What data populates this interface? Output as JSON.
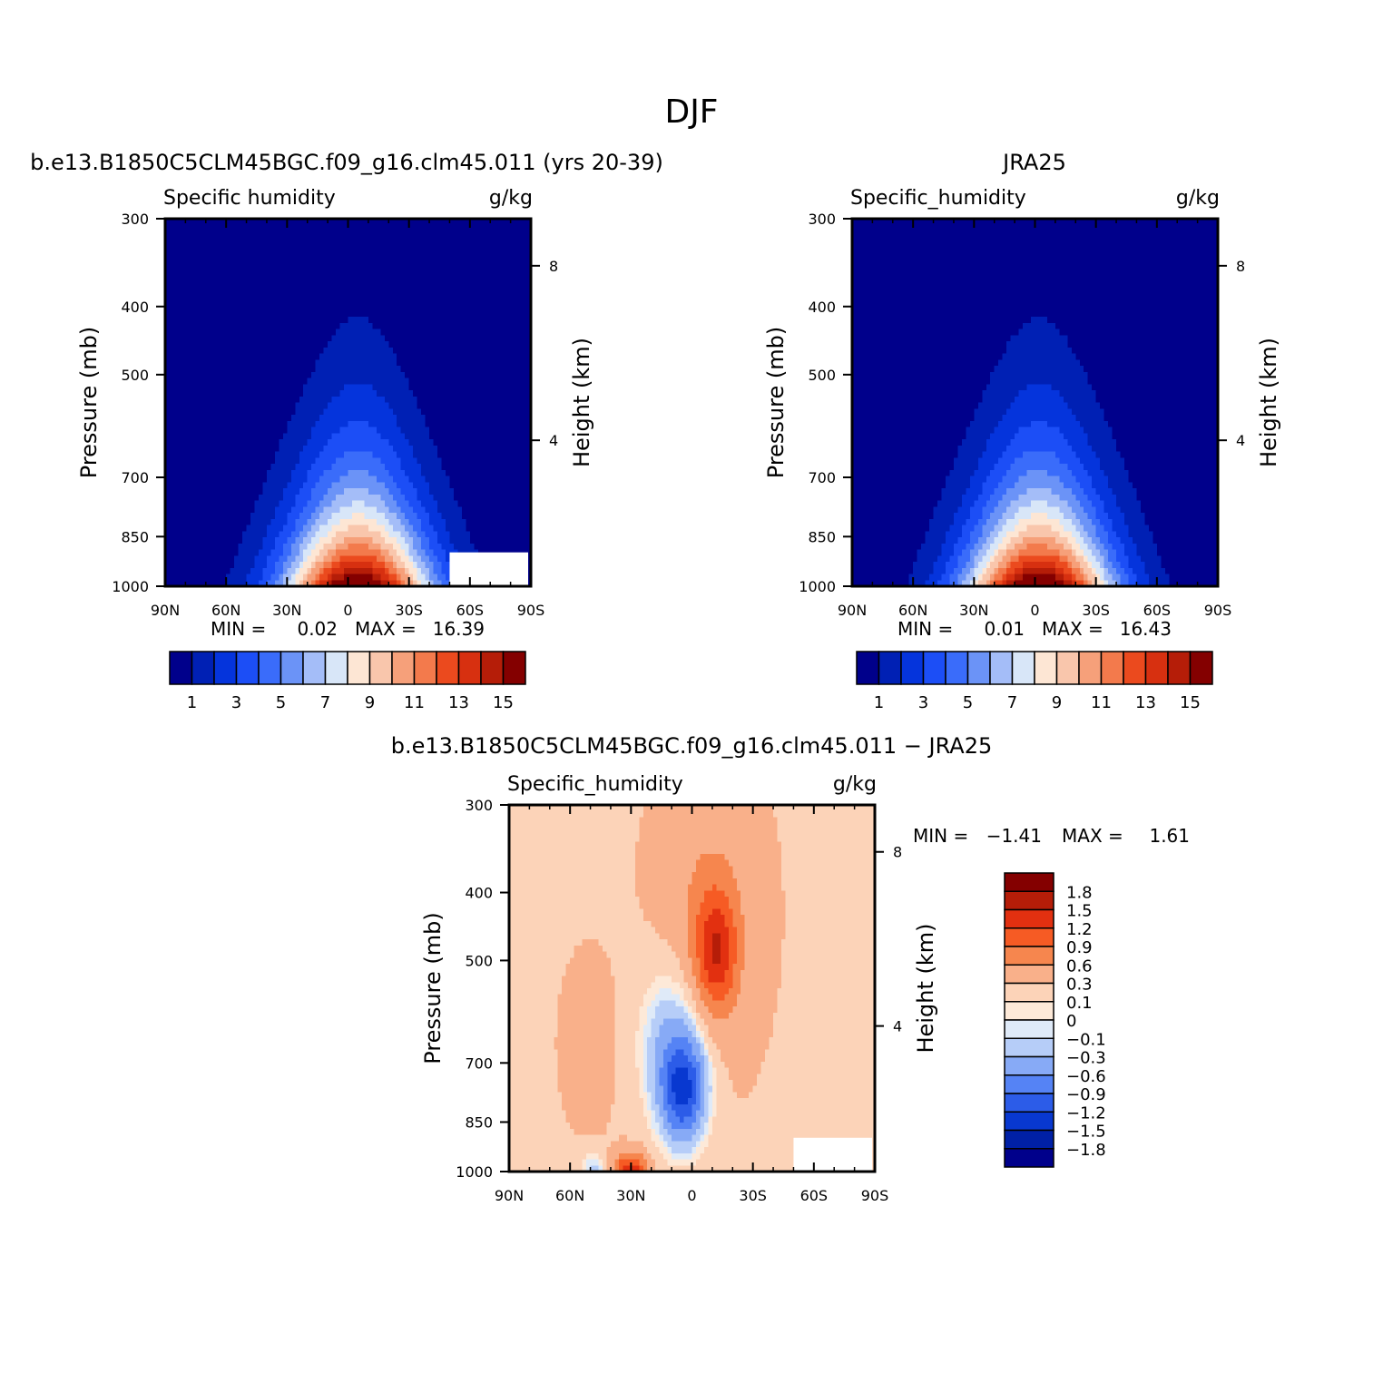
{
  "figure": {
    "title": "DJF"
  },
  "chart_data": [
    {
      "type": "heatmap",
      "panel": "model",
      "title": "b.e13.B1850C5CLM45BGC.f09_g16.clm45.011 (yrs 20-39)",
      "left_string": "Specific humidity",
      "right_string": "g/kg",
      "ylabel": "Pressure (mb)",
      "ylabel_right": "Height (km)",
      "x_ticks": [
        "90N",
        "60N",
        "30N",
        "0",
        "30S",
        "60S",
        "90S"
      ],
      "x_range": [
        90,
        -90
      ],
      "y_ticks": [
        "300",
        "400",
        "500",
        "700",
        "850",
        "1000"
      ],
      "y_range": [
        300,
        1000
      ],
      "y_scale": "log",
      "height_ticks": [
        "8",
        "4"
      ],
      "stats": {
        "min_label": "MIN =",
        "min": "0.02",
        "max_label": "MAX =",
        "max": "16.39"
      },
      "peak": {
        "lat": -5,
        "value": 16.39
      },
      "colorbar": {
        "orientation": "horizontal",
        "levels": [
          "1",
          "2",
          "3",
          "4",
          "5",
          "6",
          "7",
          "8",
          "9",
          "10",
          "11",
          "12",
          "13",
          "14",
          "15"
        ],
        "tick_labels": [
          "1",
          "3",
          "5",
          "7",
          "9",
          "11",
          "13",
          "15"
        ]
      }
    },
    {
      "type": "heatmap",
      "panel": "obs",
      "title": "JRA25",
      "left_string": "Specific_humidity",
      "right_string": "g/kg",
      "ylabel": "Pressure (mb)",
      "ylabel_right": "Height (km)",
      "x_ticks": [
        "90N",
        "60N",
        "30N",
        "0",
        "30S",
        "60S",
        "90S"
      ],
      "x_range": [
        90,
        -90
      ],
      "y_ticks": [
        "300",
        "400",
        "500",
        "700",
        "850",
        "1000"
      ],
      "y_range": [
        300,
        1000
      ],
      "y_scale": "log",
      "height_ticks": [
        "8",
        "4"
      ],
      "stats": {
        "min_label": "MIN =",
        "min": "0.01",
        "max_label": "MAX =",
        "max": "16.43"
      },
      "peak": {
        "lat": -2,
        "value": 16.43
      },
      "colorbar": {
        "orientation": "horizontal",
        "levels": [
          "1",
          "2",
          "3",
          "4",
          "5",
          "6",
          "7",
          "8",
          "9",
          "10",
          "11",
          "12",
          "13",
          "14",
          "15"
        ],
        "tick_labels": [
          "1",
          "3",
          "5",
          "7",
          "9",
          "11",
          "13",
          "15"
        ]
      }
    },
    {
      "type": "heatmap",
      "panel": "difference",
      "title": "b.e13.B1850C5CLM45BGC.f09_g16.clm45.011 − JRA25",
      "left_string": "Specific_humidity",
      "right_string": "g/kg",
      "ylabel": "Pressure (mb)",
      "ylabel_right": "Height (km)",
      "x_ticks": [
        "90N",
        "60N",
        "30N",
        "0",
        "30S",
        "60S",
        "90S"
      ],
      "x_range": [
        90,
        -90
      ],
      "y_ticks": [
        "300",
        "400",
        "500",
        "700",
        "850",
        "1000"
      ],
      "y_range": [
        300,
        1000
      ],
      "y_scale": "log",
      "height_ticks": [
        "8",
        "4"
      ],
      "stats": {
        "min_label": "MIN =",
        "min": "−1.41",
        "max_label": "MAX =",
        "max": "1.61"
      },
      "colorbar": {
        "orientation": "vertical",
        "labels": [
          "1.8",
          "1.5",
          "1.2",
          "0.9",
          "0.6",
          "0.3",
          "0.1",
          "0",
          "−0.1",
          "−0.3",
          "−0.6",
          "−0.9",
          "−1.2",
          "−1.5",
          "−1.8"
        ]
      }
    }
  ],
  "colors": {
    "seq16": [
      "#00008b",
      "#0020b4",
      "#0534dc",
      "#1c4ef6",
      "#3a6cfa",
      "#6b93f7",
      "#a4bdf8",
      "#d8e6f8",
      "#fde6d4",
      "#f9c6ac",
      "#f6a07a",
      "#f37a4c",
      "#eb4a1e",
      "#d73010",
      "#b51d08",
      "#840000"
    ],
    "diff": [
      "#840000",
      "#b51d08",
      "#e23010",
      "#f65b24",
      "#f6864e",
      "#f9b08a",
      "#fcd3b8",
      "#fde9d8",
      "#dfeaf8",
      "#b6cdf8",
      "#87aaf6",
      "#5583f5",
      "#2c5ce8",
      "#0838d0",
      "#0020a6",
      "#00008b"
    ]
  }
}
